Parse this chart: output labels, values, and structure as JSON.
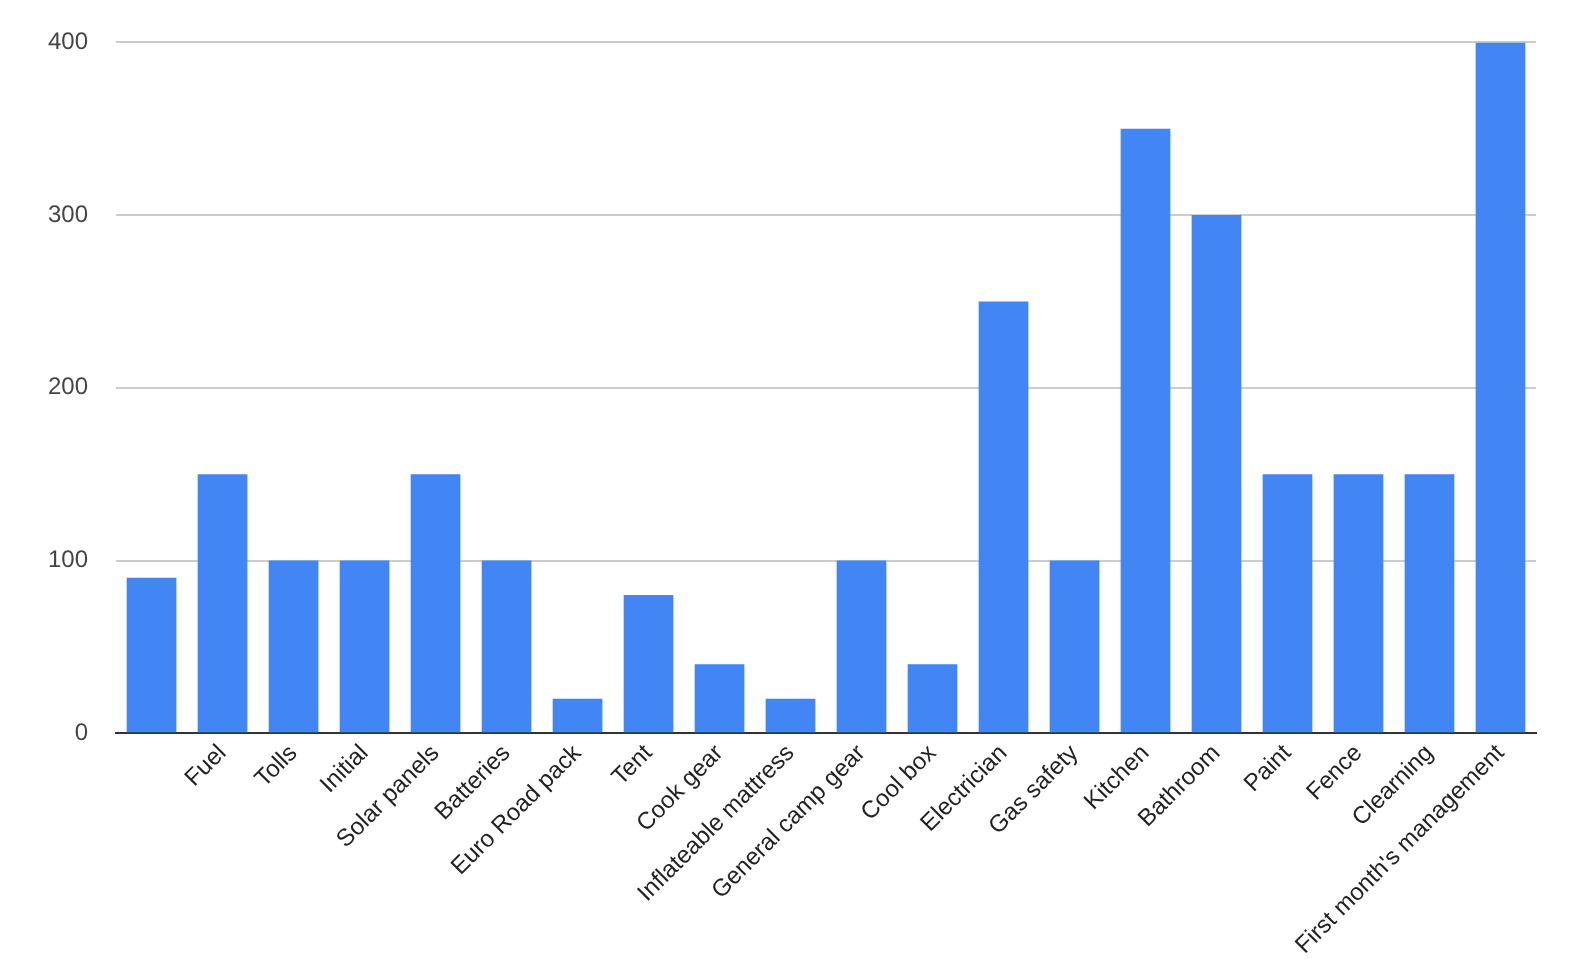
{
  "chart_data": {
    "type": "bar",
    "categories": [
      null,
      "Fuel",
      "Tolls",
      "Initial",
      "Solar panels",
      "Batteries",
      "Euro Road pack",
      "Tent",
      "Cook gear",
      "Inflateable mattress",
      "General camp gear",
      "Cool box",
      "Electrician",
      "Gas safety",
      "Kitchen",
      "Bathroom",
      "Paint",
      "Fence",
      "Clearning",
      "First month's management"
    ],
    "values": [
      90,
      150,
      100,
      100,
      150,
      100,
      20,
      80,
      40,
      20,
      100,
      40,
      250,
      100,
      350,
      300,
      150,
      150,
      150,
      400
    ],
    "color": "#4285f4",
    "ylim": [
      0,
      400
    ],
    "yticks": [
      0,
      100,
      200,
      300,
      400
    ],
    "grid": "y"
  }
}
